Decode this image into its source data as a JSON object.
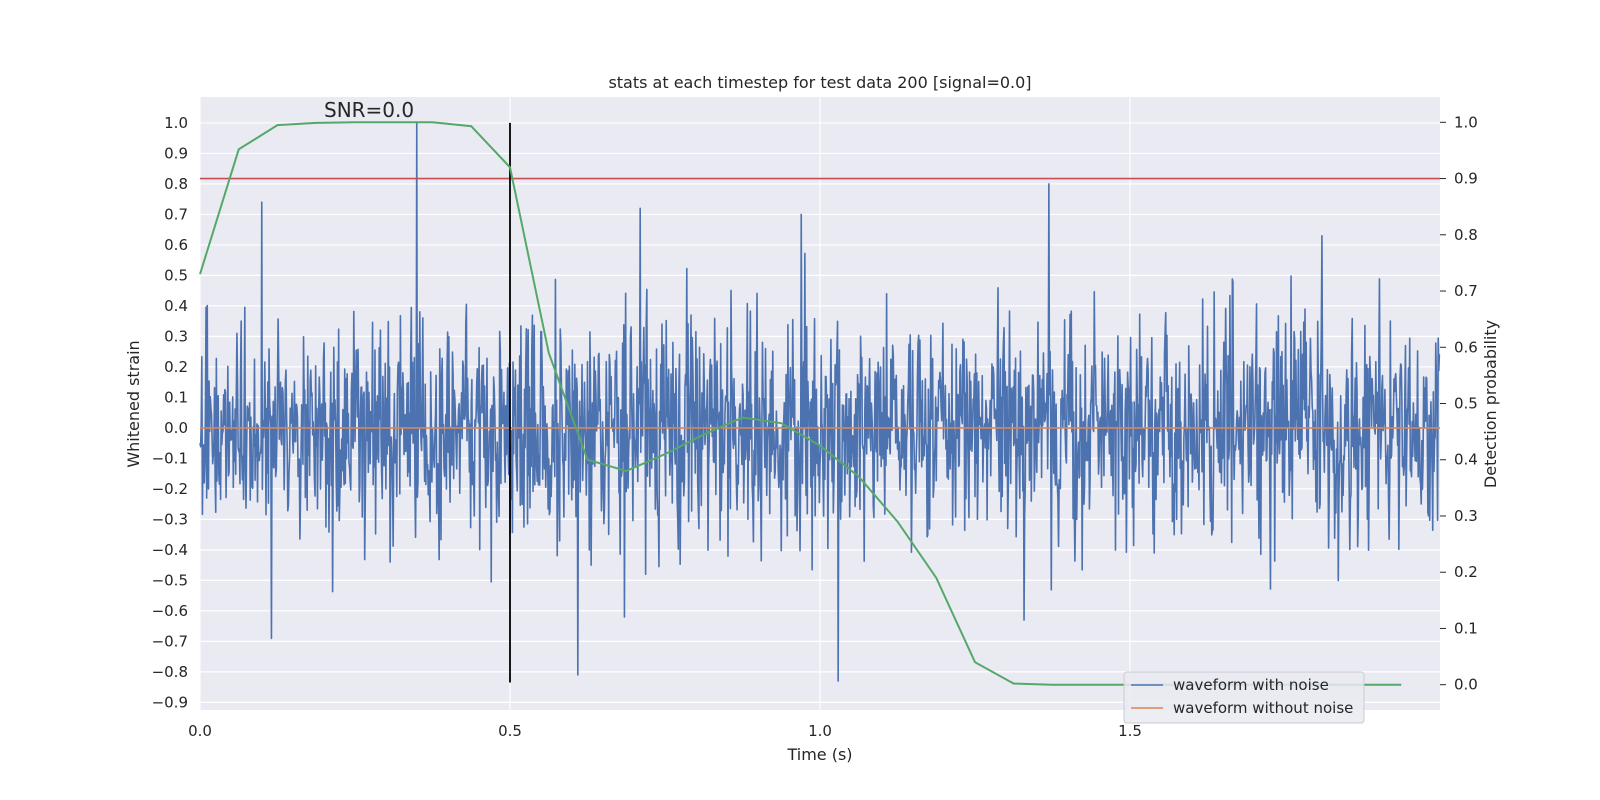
{
  "chart_data": {
    "type": "line",
    "title": "stats at each timestep for test data 200 [signal=0.0]",
    "xlabel": "Time (s)",
    "ylabel": "Whitened strain",
    "y2label": "Detection probability",
    "xlim": [
      0.0,
      2.0
    ],
    "ylim": [
      -0.925,
      1.085
    ],
    "y2lim": [
      -0.045,
      1.045
    ],
    "x_ticks": [
      0.0,
      0.5,
      1.0,
      1.5
    ],
    "x_tick_labels": [
      "0.0",
      "0.5",
      "1.0",
      "1.5"
    ],
    "y_ticks": [
      1.0,
      0.9,
      0.8,
      0.7,
      0.6,
      0.5,
      0.4,
      0.3,
      0.2,
      0.1,
      0.0,
      -0.1,
      -0.2,
      -0.3,
      -0.4,
      -0.5,
      -0.6,
      -0.7,
      -0.8,
      -0.9
    ],
    "y_tick_labels": [
      "1.0",
      "0.9",
      "0.8",
      "0.7",
      "0.6",
      "0.5",
      "0.4",
      "0.3",
      "0.2",
      "0.1",
      "0.0",
      "−0.1",
      "−0.2",
      "−0.3",
      "−0.4",
      "−0.5",
      "−0.6",
      "−0.7",
      "−0.8",
      "−0.9"
    ],
    "y2_ticks": [
      1.0,
      0.9,
      0.8,
      0.7,
      0.6,
      0.5,
      0.4,
      0.3,
      0.2,
      0.1,
      0.0
    ],
    "y2_tick_labels": [
      "1.0",
      "0.9",
      "0.8",
      "0.7",
      "0.6",
      "0.5",
      "0.4",
      "0.3",
      "0.2",
      "0.1",
      "0.0"
    ],
    "annotation": "SNR=0.0",
    "annotation_at": {
      "x": 0.2,
      "y": 1.02
    },
    "legend": {
      "placement": "lower-right",
      "entries": [
        {
          "label": "waveform with noise",
          "color": "#4c72b0"
        },
        {
          "label": "waveform without noise",
          "color": "#dd8452"
        }
      ]
    },
    "series": [
      {
        "name": "waveform with noise",
        "color": "#4c72b0",
        "axis": "left",
        "kind": "noise",
        "n_samples": 2048,
        "x_range": [
          0.0,
          2.0
        ],
        "amplitude_std": 0.18,
        "spikes": [
          [
            0.35,
            1.0
          ],
          [
            0.115,
            -0.69
          ],
          [
            0.61,
            -0.81
          ],
          [
            1.03,
            -0.83
          ],
          [
            1.37,
            0.8
          ],
          [
            0.71,
            0.72
          ],
          [
            0.1,
            0.74
          ],
          [
            0.97,
            0.7
          ],
          [
            1.81,
            0.63
          ],
          [
            0.685,
            -0.62
          ],
          [
            1.33,
            -0.63
          ]
        ]
      },
      {
        "name": "waveform without noise",
        "color": "#dd8452",
        "axis": "left",
        "x": [
          0.0,
          2.0
        ],
        "y": [
          0.0,
          0.0
        ]
      },
      {
        "name": "detection probability",
        "color": "#55a868",
        "axis": "right",
        "x": [
          0.0,
          0.0625,
          0.125,
          0.1875,
          0.25,
          0.3125,
          0.375,
          0.4375,
          0.5,
          0.5625,
          0.625,
          0.6875,
          0.75,
          0.8125,
          0.875,
          0.9375,
          1.0,
          1.0625,
          1.125,
          1.1875,
          1.25,
          1.3125,
          1.375,
          1.4375,
          1.5,
          1.5625,
          1.625,
          1.6875,
          1.75,
          1.8125,
          1.875,
          1.9375
        ],
        "y": [
          0.73,
          0.952,
          0.995,
          0.999,
          1.0,
          1.0,
          1.0,
          0.993,
          0.92,
          0.59,
          0.4,
          0.38,
          0.41,
          0.445,
          0.475,
          0.465,
          0.425,
          0.37,
          0.29,
          0.19,
          0.04,
          0.002,
          0.0,
          0.0,
          0.0,
          0.0,
          0.0,
          0.0,
          0.0,
          0.0,
          0.0,
          0.0
        ]
      }
    ],
    "threshold_line": {
      "name": "detection threshold",
      "color": "#c44e52",
      "axis": "right",
      "value": 0.9
    },
    "marker_line": {
      "name": "event time marker",
      "color": "#000000",
      "x": 0.5,
      "y_range": [
        -0.835,
        1.0
      ]
    }
  }
}
